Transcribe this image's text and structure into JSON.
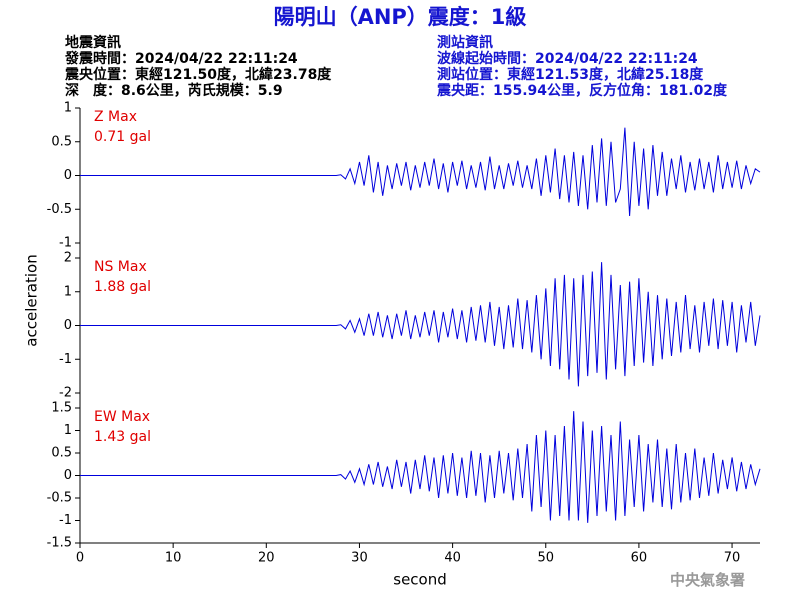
{
  "header": {
    "title": "陽明山（ANP）震度：1級",
    "left": [
      "地震資訊",
      "發震時間：2024/04/22 22:11:24",
      "震央位置：東經121.50度，北緯23.78度",
      "深　度：8.6公里，芮氏規模：5.9"
    ],
    "right": [
      "測站資訊",
      "波線起始時間：2024/04/22 22:11:24",
      "測站位置：東經121.53度，北緯25.18度",
      "震央距：155.94公里，反方位角：181.02度"
    ]
  },
  "credit": "中央氣象署",
  "chart_data": [
    {
      "type": "line",
      "label": "Z Max",
      "max_label": "0.71 gal",
      "color": "#0000dd",
      "xlim": [
        0,
        73
      ],
      "ylim": [
        -1,
        1
      ],
      "yticks": [
        -1,
        -0.5,
        0,
        0.5,
        1
      ],
      "x": [
        0,
        27,
        27.5,
        28,
        28.5,
        29,
        29.5,
        30,
        30.5,
        31,
        31.5,
        32,
        32.5,
        33,
        33.5,
        34,
        34.5,
        35,
        35.5,
        36,
        36.5,
        37,
        37.5,
        38,
        38.5,
        39,
        39.5,
        40,
        40.5,
        41,
        41.5,
        42,
        42.5,
        43,
        43.5,
        44,
        44.5,
        45,
        45.5,
        46,
        46.5,
        47,
        47.5,
        48,
        48.5,
        49,
        49.5,
        50,
        50.5,
        51,
        51.5,
        52,
        52.5,
        53,
        53.5,
        54,
        54.5,
        55,
        55.5,
        56,
        56.5,
        57,
        57.5,
        58,
        58.5,
        59,
        59.5,
        60,
        60.5,
        61,
        61.5,
        62,
        62.5,
        63,
        63.5,
        64,
        64.5,
        65,
        65.5,
        66,
        66.5,
        67,
        67.5,
        68,
        68.5,
        69,
        69.5,
        70,
        70.5,
        71,
        71.5,
        72,
        72.5,
        73
      ],
      "values": [
        0,
        0,
        0,
        0.01,
        -0.05,
        0.1,
        -0.12,
        0.2,
        -0.15,
        0.3,
        -0.25,
        0.2,
        -0.3,
        0.15,
        -0.2,
        0.18,
        -0.15,
        0.2,
        -0.22,
        0.15,
        -0.18,
        0.2,
        -0.15,
        0.25,
        -0.2,
        0.18,
        -0.25,
        0.2,
        -0.15,
        0.22,
        -0.2,
        0.15,
        -0.18,
        0.2,
        -0.22,
        0.28,
        -0.2,
        0.15,
        -0.2,
        0.18,
        -0.15,
        0.22,
        -0.18,
        0.15,
        -0.2,
        0.25,
        -0.3,
        0.3,
        -0.25,
        0.4,
        -0.35,
        0.3,
        -0.4,
        0.35,
        -0.45,
        0.3,
        -0.5,
        0.45,
        -0.4,
        0.55,
        -0.45,
        0.5,
        -0.4,
        -0.2,
        0.71,
        -0.6,
        0.5,
        -0.45,
        0.4,
        -0.5,
        0.45,
        -0.3,
        0.35,
        -0.3,
        0.25,
        -0.2,
        0.3,
        -0.25,
        0.2,
        -0.22,
        0.25,
        -0.2,
        0.2,
        -0.25,
        0.3,
        -0.2,
        0.2,
        -0.18,
        0.22,
        -0.2,
        0.15,
        -0.12,
        0.1,
        0.05
      ]
    },
    {
      "type": "line",
      "label": "NS Max",
      "max_label": "1.88 gal",
      "ylabel": "acceleration",
      "color": "#0000dd",
      "xlim": [
        0,
        73
      ],
      "ylim": [
        -2,
        2
      ],
      "yticks": [
        -2,
        -1,
        0,
        1,
        2
      ],
      "x": [
        0,
        27,
        27.5,
        28,
        28.5,
        29,
        29.5,
        30,
        30.5,
        31,
        31.5,
        32,
        32.5,
        33,
        33.5,
        34,
        34.5,
        35,
        35.5,
        36,
        36.5,
        37,
        37.5,
        38,
        38.5,
        39,
        39.5,
        40,
        40.5,
        41,
        41.5,
        42,
        42.5,
        43,
        43.5,
        44,
        44.5,
        45,
        45.5,
        46,
        46.5,
        47,
        47.5,
        48,
        48.5,
        49,
        49.5,
        50,
        50.5,
        51,
        51.5,
        52,
        52.5,
        53,
        53.5,
        54,
        54.5,
        55,
        55.5,
        56,
        56.5,
        57,
        57.5,
        58,
        58.5,
        59,
        59.5,
        60,
        60.5,
        61,
        61.5,
        62,
        62.5,
        63,
        63.5,
        64,
        64.5,
        65,
        65.5,
        66,
        66.5,
        67,
        67.5,
        68,
        68.5,
        69,
        69.5,
        70,
        70.5,
        71,
        71.5,
        72,
        72.5,
        73
      ],
      "values": [
        0,
        0,
        0,
        0.02,
        -0.1,
        0.15,
        -0.2,
        0.2,
        -0.3,
        0.35,
        -0.3,
        0.4,
        -0.35,
        0.3,
        -0.4,
        0.35,
        -0.3,
        0.45,
        -0.4,
        0.3,
        -0.35,
        0.4,
        -0.3,
        0.45,
        -0.5,
        0.4,
        -0.35,
        0.5,
        -0.4,
        0.45,
        -0.5,
        0.55,
        -0.45,
        0.6,
        -0.5,
        0.7,
        -0.6,
        0.55,
        -0.7,
        0.6,
        -0.65,
        0.8,
        -0.7,
        0.75,
        -0.8,
        0.9,
        -1.0,
        1.1,
        -1.2,
        1.4,
        -1.3,
        1.5,
        -1.6,
        1.4,
        -1.8,
        1.5,
        -1.5,
        1.6,
        -1.4,
        1.88,
        -1.6,
        1.5,
        -1.3,
        1.2,
        -1.5,
        1.3,
        -1.2,
        1.4,
        -1.1,
        1.0,
        -1.2,
        0.9,
        -1.0,
        0.8,
        -0.9,
        0.7,
        -0.8,
        0.9,
        -0.7,
        0.6,
        -0.8,
        0.7,
        -0.6,
        0.8,
        -0.7,
        0.75,
        -0.6,
        0.7,
        -0.8,
        0.6,
        -0.5,
        0.7,
        -0.6,
        0.3
      ]
    },
    {
      "type": "line",
      "label": "EW Max",
      "max_label": "1.43 gal",
      "xlabel": "second",
      "color": "#0000dd",
      "xlim": [
        0,
        73
      ],
      "xticks": [
        0,
        10,
        20,
        30,
        40,
        50,
        60,
        70
      ],
      "ylim": [
        -1.5,
        1.5
      ],
      "yticks": [
        -1.5,
        -1,
        -0.5,
        0,
        0.5,
        1,
        1.5
      ],
      "x": [
        0,
        27,
        27.5,
        28,
        28.5,
        29,
        29.5,
        30,
        30.5,
        31,
        31.5,
        32,
        32.5,
        33,
        33.5,
        34,
        34.5,
        35,
        35.5,
        36,
        36.5,
        37,
        37.5,
        38,
        38.5,
        39,
        39.5,
        40,
        40.5,
        41,
        41.5,
        42,
        42.5,
        43,
        43.5,
        44,
        44.5,
        45,
        45.5,
        46,
        46.5,
        47,
        47.5,
        48,
        48.5,
        49,
        49.5,
        50,
        50.5,
        51,
        51.5,
        52,
        52.5,
        53,
        53.5,
        54,
        54.5,
        55,
        55.5,
        56,
        56.5,
        57,
        57.5,
        58,
        58.5,
        59,
        59.5,
        60,
        60.5,
        61,
        61.5,
        62,
        62.5,
        63,
        63.5,
        64,
        64.5,
        65,
        65.5,
        66,
        66.5,
        67,
        67.5,
        68,
        68.5,
        69,
        69.5,
        70,
        70.5,
        71,
        71.5,
        72,
        72.5,
        73
      ],
      "values": [
        0,
        0,
        0,
        0.02,
        -0.08,
        0.1,
        -0.15,
        0.15,
        -0.2,
        0.25,
        -0.2,
        0.3,
        -0.25,
        0.2,
        -0.3,
        0.35,
        -0.25,
        0.3,
        -0.4,
        0.35,
        -0.3,
        0.45,
        -0.35,
        0.4,
        -0.5,
        0.45,
        -0.4,
        0.5,
        -0.45,
        0.4,
        -0.5,
        0.55,
        -0.45,
        0.5,
        -0.6,
        0.45,
        -0.5,
        0.55,
        -0.4,
        0.5,
        -0.55,
        0.6,
        -0.5,
        0.7,
        -0.8,
        0.9,
        -0.7,
        1.0,
        -1.0,
        0.9,
        -0.9,
        1.1,
        -1.0,
        1.43,
        -1.0,
        1.2,
        -1.05,
        1.0,
        -0.9,
        1.1,
        -0.8,
        0.9,
        -1.0,
        1.2,
        -0.9,
        0.8,
        -0.7,
        0.9,
        -0.8,
        0.7,
        -0.6,
        0.8,
        -0.7,
        0.6,
        -0.75,
        0.7,
        -0.6,
        0.5,
        -0.55,
        0.6,
        -0.5,
        0.4,
        -0.45,
        0.5,
        -0.4,
        0.35,
        -0.3,
        0.4,
        -0.35,
        0.3,
        -0.3,
        0.25,
        -0.2,
        0.15
      ]
    }
  ]
}
